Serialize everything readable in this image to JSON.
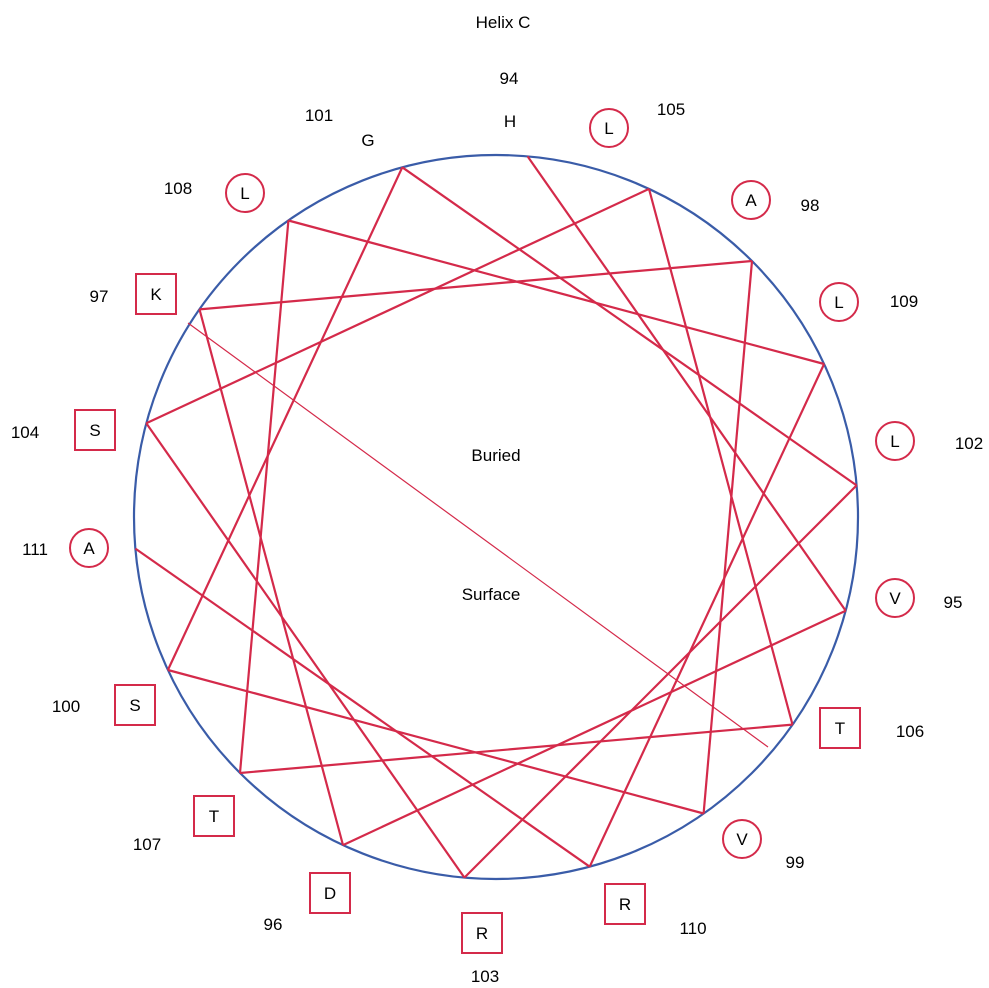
{
  "title": "Helix C",
  "region_labels": {
    "buried": "Buried",
    "surface": "Surface"
  },
  "colors": {
    "circle": "#3a5ca8",
    "path": "#d42a4a",
    "marker": "#d42a4a",
    "text": "#000000"
  },
  "residues": [
    {
      "num": "94",
      "aa": "H",
      "marker": "none"
    },
    {
      "num": "95",
      "aa": "V",
      "marker": "circle"
    },
    {
      "num": "96",
      "aa": "D",
      "marker": "square"
    },
    {
      "num": "97",
      "aa": "K",
      "marker": "square"
    },
    {
      "num": "98",
      "aa": "A",
      "marker": "circle"
    },
    {
      "num": "99",
      "aa": "V",
      "marker": "circle"
    },
    {
      "num": "100",
      "aa": "S",
      "marker": "square"
    },
    {
      "num": "101",
      "aa": "G",
      "marker": "none"
    },
    {
      "num": "102",
      "aa": "L",
      "marker": "circle"
    },
    {
      "num": "103",
      "aa": "R",
      "marker": "square"
    },
    {
      "num": "104",
      "aa": "S",
      "marker": "square"
    },
    {
      "num": "105",
      "aa": "L",
      "marker": "circle"
    },
    {
      "num": "106",
      "aa": "T",
      "marker": "square"
    },
    {
      "num": "107",
      "aa": "T",
      "marker": "square"
    },
    {
      "num": "108",
      "aa": "L",
      "marker": "circle"
    },
    {
      "num": "109",
      "aa": "L",
      "marker": "circle"
    },
    {
      "num": "110",
      "aa": "R",
      "marker": "square"
    },
    {
      "num": "111",
      "aa": "A",
      "marker": "circle"
    }
  ]
}
